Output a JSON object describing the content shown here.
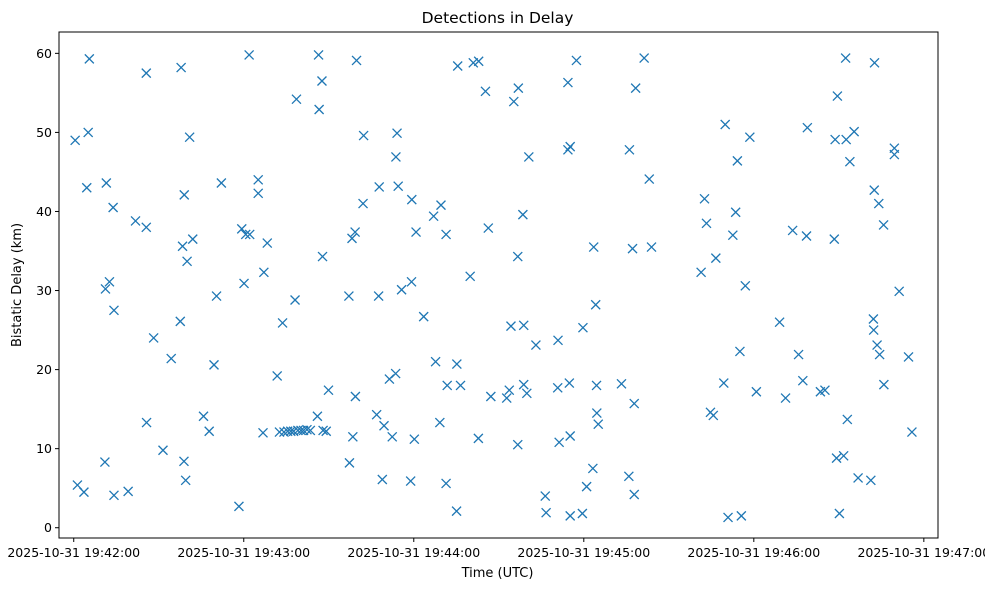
{
  "chart_data": {
    "type": "scatter",
    "title": "Detections in Delay",
    "xlabel": "Time (UTC)",
    "ylabel": "Bistatic Delay (km)",
    "x_unit": "seconds after 2025-10-31 19:42:00",
    "xlim": [
      -5.2,
      305
    ],
    "ylim": [
      -1.3,
      62.7
    ],
    "x_ticks": [
      {
        "value": 0,
        "label": "2025-10-31 19:42:00"
      },
      {
        "value": 60,
        "label": "2025-10-31 19:43:00"
      },
      {
        "value": 120,
        "label": "2025-10-31 19:44:00"
      },
      {
        "value": 180,
        "label": "2025-10-31 19:45:00"
      },
      {
        "value": 240,
        "label": "2025-10-31 19:46:00"
      },
      {
        "value": 300,
        "label": "2025-10-31 19:47:00"
      }
    ],
    "y_ticks": [
      {
        "value": 0,
        "label": "0"
      },
      {
        "value": 10,
        "label": "10"
      },
      {
        "value": 20,
        "label": "20"
      },
      {
        "value": 30,
        "label": "30"
      },
      {
        "value": 40,
        "label": "40"
      },
      {
        "value": 50,
        "label": "50"
      },
      {
        "value": 60,
        "label": "60"
      }
    ],
    "marker": "x",
    "color": "#1f77b4",
    "grid": false,
    "legend": "none",
    "points": [
      [
        0.5,
        49
      ],
      [
        1.3,
        5.4
      ],
      [
        4.6,
        43
      ],
      [
        5.1,
        50
      ],
      [
        5.5,
        59.3
      ],
      [
        3.6,
        4.5
      ],
      [
        11.5,
        43.6
      ],
      [
        12.6,
        31.1
      ],
      [
        11.2,
        30.2
      ],
      [
        11,
        8.3
      ],
      [
        13.9,
        40.5
      ],
      [
        14.2,
        27.5
      ],
      [
        14.2,
        4.1
      ],
      [
        19.2,
        4.6
      ],
      [
        21.8,
        38.8
      ],
      [
        25.6,
        38
      ],
      [
        25.7,
        13.3
      ],
      [
        25.6,
        57.5
      ],
      [
        28.2,
        24
      ],
      [
        31.5,
        9.8
      ],
      [
        34.4,
        21.4
      ],
      [
        37.9,
        58.2
      ],
      [
        37.6,
        26.1
      ],
      [
        38.4,
        35.6
      ],
      [
        39,
        42.1
      ],
      [
        38.9,
        8.4
      ],
      [
        39.5,
        6
      ],
      [
        40,
        33.7
      ],
      [
        40.9,
        49.4
      ],
      [
        42,
        36.5
      ],
      [
        45.8,
        14.1
      ],
      [
        47.8,
        12.2
      ],
      [
        49.5,
        20.6
      ],
      [
        50.4,
        29.3
      ],
      [
        52.1,
        43.6
      ],
      [
        58.3,
        2.7
      ],
      [
        59.3,
        37.8
      ],
      [
        60.1,
        30.9
      ],
      [
        60.7,
        37.1
      ],
      [
        61.9,
        59.8
      ],
      [
        62.1,
        37.1
      ],
      [
        65.1,
        44
      ],
      [
        65.1,
        42.3
      ],
      [
        67.1,
        32.3
      ],
      [
        66.8,
        12
      ],
      [
        68.3,
        36
      ],
      [
        71.8,
        19.2
      ],
      [
        72.6,
        12.1
      ],
      [
        73.7,
        25.9
      ],
      [
        74.2,
        12.1
      ],
      [
        75.5,
        12.2
      ],
      [
        76.6,
        12.2
      ],
      [
        77.6,
        12.2
      ],
      [
        79.1,
        12.3
      ],
      [
        80.2,
        12.3
      ],
      [
        81.1,
        12.3
      ],
      [
        82.3,
        12.4
      ],
      [
        83.5,
        12.3
      ],
      [
        78.1,
        28.8
      ],
      [
        78.6,
        54.2
      ],
      [
        86,
        14.1
      ],
      [
        86.4,
        59.8
      ],
      [
        86.6,
        52.9
      ],
      [
        87.6,
        56.5
      ],
      [
        87.8,
        34.3
      ],
      [
        88,
        12.3
      ],
      [
        89.1,
        12.2
      ],
      [
        89.9,
        17.4
      ],
      [
        97.1,
        29.3
      ],
      [
        97.3,
        8.2
      ],
      [
        98.2,
        36.6
      ],
      [
        98.5,
        11.5
      ],
      [
        99.3,
        37.4
      ],
      [
        99.4,
        16.6
      ],
      [
        99.8,
        59.1
      ],
      [
        102.1,
        41
      ],
      [
        102.3,
        49.6
      ],
      [
        106.9,
        14.3
      ],
      [
        107.6,
        29.3
      ],
      [
        107.8,
        43.1
      ],
      [
        108.9,
        6.1
      ],
      [
        109.5,
        12.9
      ],
      [
        111.4,
        18.8
      ],
      [
        112.4,
        11.5
      ],
      [
        113.6,
        19.5
      ],
      [
        113.7,
        46.9
      ],
      [
        114.1,
        49.9
      ],
      [
        114.5,
        43.2
      ],
      [
        115.7,
        30.1
      ],
      [
        118.9,
        5.9
      ],
      [
        119.2,
        31.1
      ],
      [
        119.3,
        41.5
      ],
      [
        120.2,
        11.2
      ],
      [
        120.8,
        37.4
      ],
      [
        123.5,
        26.7
      ],
      [
        127,
        39.4
      ],
      [
        127.7,
        21
      ],
      [
        129.2,
        13.3
      ],
      [
        129.6,
        40.8
      ],
      [
        131.4,
        5.6
      ],
      [
        131.4,
        37.1
      ],
      [
        131.8,
        18
      ],
      [
        135.1,
        2.1
      ],
      [
        135.5,
        58.4
      ],
      [
        135.2,
        20.7
      ],
      [
        136.5,
        18
      ],
      [
        139.9,
        31.8
      ],
      [
        141,
        58.8
      ],
      [
        142.9,
        59
      ],
      [
        142.8,
        11.3
      ],
      [
        145.3,
        55.2
      ],
      [
        146.3,
        37.9
      ],
      [
        147.2,
        16.6
      ],
      [
        152.8,
        16.4
      ],
      [
        153.7,
        17.4
      ],
      [
        154.3,
        25.5
      ],
      [
        155.3,
        53.9
      ],
      [
        156.7,
        10.5
      ],
      [
        156.7,
        34.3
      ],
      [
        156.9,
        55.6
      ],
      [
        158.5,
        39.6
      ],
      [
        158.8,
        25.6
      ],
      [
        158.8,
        18.1
      ],
      [
        159.9,
        17
      ],
      [
        160.6,
        46.9
      ],
      [
        163.1,
        23.1
      ],
      [
        166.4,
        4
      ],
      [
        166.7,
        1.9
      ],
      [
        170.8,
        17.7
      ],
      [
        170.9,
        23.7
      ],
      [
        171.3,
        10.8
      ],
      [
        174.4,
        47.8
      ],
      [
        174.4,
        56.3
      ],
      [
        174.9,
        18.3
      ],
      [
        175.2,
        48.2
      ],
      [
        175.2,
        11.6
      ],
      [
        175.2,
        1.5
      ],
      [
        177.4,
        59.1
      ],
      [
        179.5,
        1.8
      ],
      [
        179.7,
        25.3
      ],
      [
        181,
        5.2
      ],
      [
        183.2,
        7.5
      ],
      [
        183.5,
        35.5
      ],
      [
        184.2,
        28.2
      ],
      [
        184.5,
        18
      ],
      [
        184.6,
        14.5
      ],
      [
        185.1,
        13.1
      ],
      [
        193.3,
        18.2
      ],
      [
        196.1,
        47.8
      ],
      [
        195.9,
        6.5
      ],
      [
        197.2,
        35.3
      ],
      [
        197.8,
        15.7
      ],
      [
        197.8,
        4.2
      ],
      [
        198.3,
        55.6
      ],
      [
        201.3,
        59.4
      ],
      [
        203.1,
        44.1
      ],
      [
        203.9,
        35.5
      ],
      [
        221.4,
        32.3
      ],
      [
        222.6,
        41.6
      ],
      [
        223.3,
        38.5
      ],
      [
        224.7,
        14.6
      ],
      [
        225.7,
        14.2
      ],
      [
        226.6,
        34.1
      ],
      [
        229.9,
        51
      ],
      [
        229.4,
        18.3
      ],
      [
        230.9,
        1.3
      ],
      [
        232.6,
        37
      ],
      [
        233.6,
        39.9
      ],
      [
        234.2,
        46.4
      ],
      [
        235.1,
        22.3
      ],
      [
        235.6,
        1.5
      ],
      [
        237,
        30.6
      ],
      [
        238.6,
        49.4
      ],
      [
        240.9,
        17.2
      ],
      [
        249.1,
        26
      ],
      [
        251.2,
        16.4
      ],
      [
        253.7,
        37.6
      ],
      [
        255.8,
        21.9
      ],
      [
        257.3,
        18.6
      ],
      [
        258.6,
        36.9
      ],
      [
        258.9,
        50.6
      ],
      [
        263.5,
        17.2
      ],
      [
        265.1,
        17.4
      ],
      [
        268.4,
        36.5
      ],
      [
        268.7,
        49.1
      ],
      [
        269.2,
        8.8
      ],
      [
        269.5,
        54.6
      ],
      [
        270.2,
        1.8
      ],
      [
        271.7,
        9.1
      ],
      [
        272.6,
        49.1
      ],
      [
        273,
        13.7
      ],
      [
        272.4,
        59.4
      ],
      [
        273.9,
        46.3
      ],
      [
        275.4,
        50.1
      ],
      [
        276.8,
        6.3
      ],
      [
        281.3,
        6
      ],
      [
        282.2,
        26.4
      ],
      [
        282.3,
        25
      ],
      [
        282.5,
        42.7
      ],
      [
        282.6,
        58.8
      ],
      [
        283.5,
        23.1
      ],
      [
        284.1,
        41
      ],
      [
        284.4,
        21.9
      ],
      [
        285.8,
        38.3
      ],
      [
        285.9,
        18.1
      ],
      [
        289.6,
        48
      ],
      [
        289.6,
        47.2
      ],
      [
        291.3,
        29.9
      ],
      [
        294.6,
        21.6
      ],
      [
        295.8,
        12.1
      ]
    ]
  }
}
